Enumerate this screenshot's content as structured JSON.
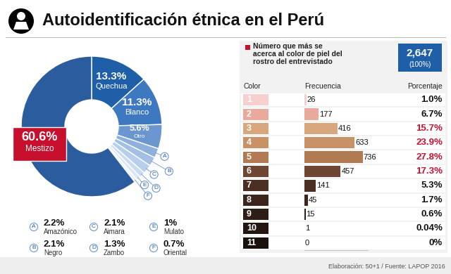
{
  "title": "Autoidentificación étnica en el Perú",
  "source": "Elaboración: 50+1 / Fuente: LAPOP 2016",
  "chart_data": [
    {
      "type": "pie",
      "categories": [
        "Quechua",
        "Blanco",
        "Otro",
        "Amazónico",
        "Negro",
        "Aimara",
        "Zambo",
        "Mulato",
        "Oriental",
        "Mestizo"
      ],
      "values": [
        13.3,
        11.3,
        5.6,
        2.2,
        2.1,
        2.1,
        1.3,
        1,
        0.7,
        60.6
      ],
      "value_labels": [
        "13.3%",
        "11.3%",
        "5.6%",
        "2.2%",
        "2.1%",
        "2.1%",
        "1.3%",
        "1%",
        "0.7%",
        "60.6%"
      ],
      "letters": [
        null,
        null,
        null,
        "A",
        "B",
        "C",
        "D",
        "E",
        "F",
        null
      ],
      "colors": [
        "#1f5fa8",
        "#3d78c0",
        "#6b96cf",
        "#8eb0dc",
        "#a3c0e4",
        "#b7cfeb",
        "#c9dbf0",
        "#dbe7f5",
        "#ebf1fa",
        "#2b5c9e"
      ],
      "data_labels": true
    },
    {
      "type": "bar",
      "orientation": "horizontal",
      "subtitle": "Número que más se\nacerca al color de piel del\nrostro del entrevistado",
      "total_label": "2,647",
      "total_percent_label": "(100%)",
      "column_headers": [
        "Color",
        "Frecuencia",
        "Porcentaje"
      ],
      "categories": [
        "1",
        "2",
        "3",
        "4",
        "5",
        "6",
        "7",
        "8",
        "9",
        "10",
        "11"
      ],
      "values": [
        26,
        177,
        416,
        633,
        736,
        457,
        141,
        45,
        15,
        1,
        0
      ],
      "colors": [
        "#f6d0cf",
        "#e9a99c",
        "#d9a77e",
        "#c89266",
        "#b27a53",
        "#6e4530",
        "#4b2f22",
        "#3c261b",
        "#2e1d15",
        "#231610",
        "#1a100c"
      ],
      "percentage_labels": [
        "1.0%",
        "6.7%",
        "15.7%",
        "23.9%",
        "27.8%",
        "17.3%",
        "5.3%",
        "1.7%",
        "0.6%",
        "0.04%",
        "0%"
      ],
      "percentage_colors": [
        "#111111",
        "#111111",
        "#c8102e",
        "#c8102e",
        "#c8102e",
        "#c8102e",
        "#111111",
        "#111111",
        "#111111",
        "#111111",
        "#111111"
      ],
      "xlim": [
        0,
        800
      ],
      "data_labels": true,
      "tick_labels": false
    }
  ]
}
